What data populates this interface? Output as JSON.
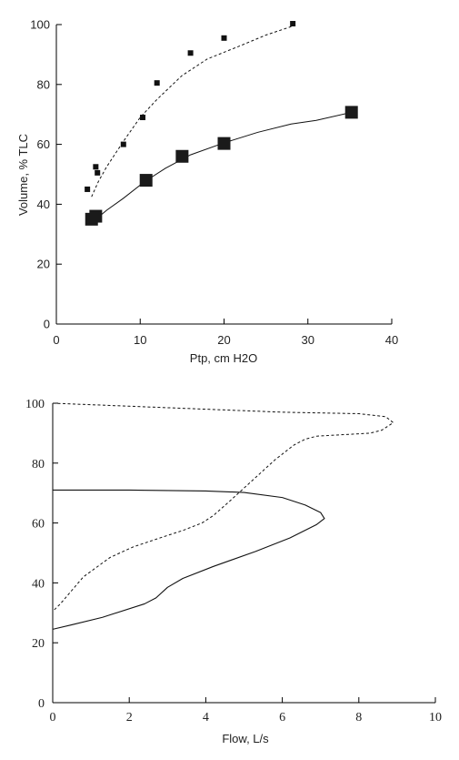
{
  "chart_data": [
    {
      "type": "scatter",
      "xlabel": "Ptp, cm H2O",
      "ylabel": "Volume, % TLC",
      "xlim": [
        0,
        40
      ],
      "ylim": [
        0,
        100
      ],
      "xticks": [
        "0",
        "10",
        "20",
        "30",
        "40"
      ],
      "yticks": [
        "0",
        "20",
        "40",
        "60",
        "80",
        "100"
      ],
      "series": [
        {
          "style": "small-square-points-dashed-fit",
          "points": [
            [
              3.7,
              45
            ],
            [
              4.7,
              52.5
            ],
            [
              4.9,
              50.5
            ],
            [
              8,
              60
            ],
            [
              10.3,
              69
            ],
            [
              12,
              80.5
            ],
            [
              16,
              90.5
            ],
            [
              20,
              95.5
            ],
            [
              28.2,
              100.3
            ]
          ],
          "curve": [
            [
              4.2,
              42.5
            ],
            [
              5,
              47.5
            ],
            [
              6,
              52.5
            ],
            [
              8,
              61
            ],
            [
              10,
              69
            ],
            [
              12,
              75
            ],
            [
              15,
              83
            ],
            [
              18,
              88.5
            ],
            [
              22,
              93
            ],
            [
              25,
              96.5
            ],
            [
              28.2,
              99.5
            ]
          ]
        },
        {
          "style": "large-square-points-solid-fit",
          "points": [
            [
              4.2,
              35
            ],
            [
              4.7,
              36
            ],
            [
              10.7,
              48
            ],
            [
              15,
              56
            ],
            [
              20,
              60.3
            ],
            [
              35.2,
              70.7
            ]
          ],
          "curve": [
            [
              4.5,
              34.5
            ],
            [
              6,
              38
            ],
            [
              8,
              42
            ],
            [
              10.5,
              47.5
            ],
            [
              13,
              52
            ],
            [
              16,
              56.5
            ],
            [
              20,
              60.5
            ],
            [
              24,
              64
            ],
            [
              28,
              66.8
            ],
            [
              31,
              68
            ],
            [
              35.2,
              70.7
            ]
          ]
        }
      ]
    },
    {
      "type": "line",
      "xlabel": "Flow, L/s",
      "ylabel": "",
      "xlim": [
        0,
        10
      ],
      "ylim": [
        0,
        100
      ],
      "xticks": [
        "0",
        "2",
        "4",
        "6",
        "8",
        "10"
      ],
      "yticks": [
        "0",
        "20",
        "40",
        "60",
        "80",
        "100"
      ],
      "series": [
        {
          "style": "dashed",
          "points": [
            [
              0,
              100
            ],
            [
              2,
              99
            ],
            [
              4,
              98
            ],
            [
              6,
              97
            ],
            [
              8,
              96.5
            ],
            [
              8.7,
              95.5
            ],
            [
              8.9,
              93.5
            ],
            [
              8.6,
              91
            ],
            [
              8.3,
              90
            ],
            [
              6.9,
              89
            ],
            [
              6.6,
              88
            ],
            [
              6.3,
              86
            ],
            [
              5.8,
              81
            ],
            [
              5.2,
              74
            ],
            [
              4.6,
              67
            ],
            [
              4.2,
              62.5
            ],
            [
              3.9,
              60
            ],
            [
              3.4,
              57.5
            ],
            [
              2.8,
              55
            ],
            [
              2.1,
              52
            ],
            [
              1.5,
              48.5
            ],
            [
              0.8,
              42
            ],
            [
              0.2,
              33
            ],
            [
              0,
              30.5
            ]
          ]
        },
        {
          "style": "solid",
          "points": [
            [
              0,
              71
            ],
            [
              2,
              71
            ],
            [
              4,
              70.7
            ],
            [
              5,
              70.2
            ],
            [
              6,
              68.5
            ],
            [
              6.6,
              66
            ],
            [
              7,
              63.5
            ],
            [
              7.1,
              61.5
            ],
            [
              6.9,
              59.5
            ],
            [
              6.2,
              55
            ],
            [
              5.3,
              50.5
            ],
            [
              4.2,
              45.5
            ],
            [
              3.4,
              41.5
            ],
            [
              3,
              38.5
            ],
            [
              2.7,
              35
            ],
            [
              2.4,
              33
            ],
            [
              1.3,
              28.5
            ],
            [
              0.5,
              26
            ],
            [
              0,
              24.5
            ]
          ]
        }
      ]
    }
  ]
}
